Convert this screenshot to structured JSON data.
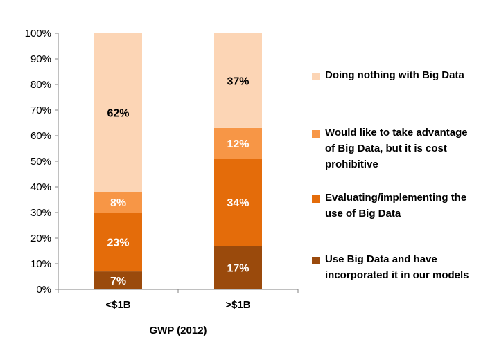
{
  "chart_data": {
    "type": "bar",
    "stacked": true,
    "categories": [
      "<$1B",
      ">$1B"
    ],
    "xlabel": "GWP (2012)",
    "ylabel": "",
    "ylim": [
      0,
      100
    ],
    "yticks": [
      "0%",
      "10%",
      "20%",
      "30%",
      "40%",
      "50%",
      "60%",
      "70%",
      "80%",
      "90%",
      "100%"
    ],
    "series": [
      {
        "name": "Use Big Data and have incorporated it in our models",
        "values": [
          7,
          17
        ],
        "labels": [
          "7%",
          "17%"
        ],
        "color": "#9a4a0c",
        "label_color": "#ffffff"
      },
      {
        "name": "Evaluating/implementing the use of Big Data",
        "values": [
          23,
          34
        ],
        "labels": [
          "23%",
          "34%"
        ],
        "color": "#e46c0a",
        "label_color": "#ffffff"
      },
      {
        "name": "Would like to take advantage of Big Data, but it is cost prohibitive",
        "values": [
          8,
          12
        ],
        "labels": [
          "8%",
          "12%"
        ],
        "color": "#f79646",
        "label_color": "#ffffff"
      },
      {
        "name": "Doing nothing with Big Data",
        "values": [
          62,
          37
        ],
        "labels": [
          "62%",
          "37%"
        ],
        "color": "#fcd5b5",
        "label_color": "#000000"
      }
    ],
    "legend_order": [
      3,
      2,
      1,
      0
    ],
    "grid": false,
    "legend": "right"
  }
}
